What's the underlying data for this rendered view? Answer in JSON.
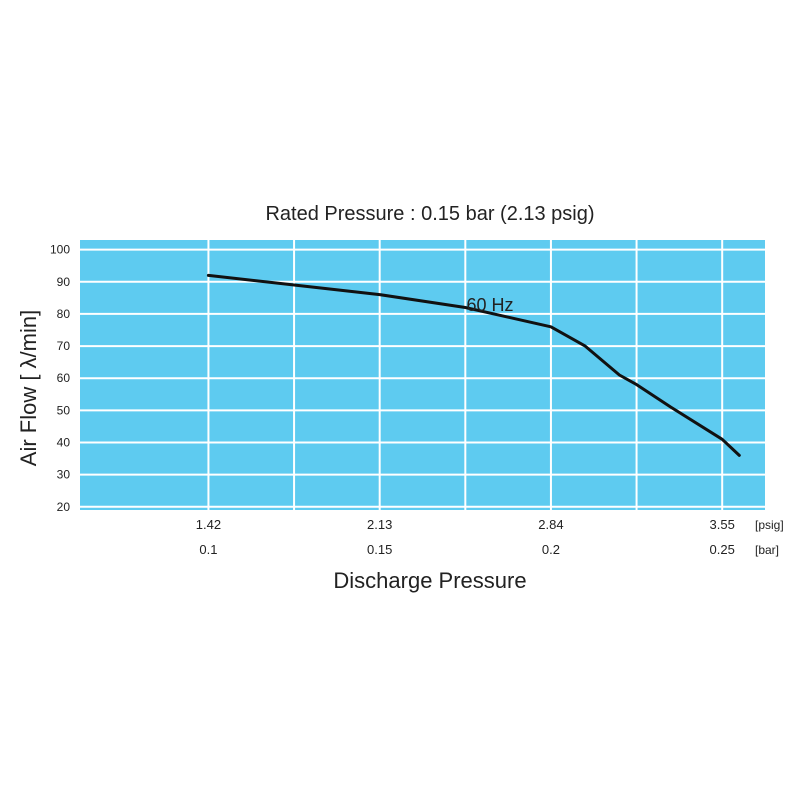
{
  "chart_data": {
    "type": "line",
    "title": "Rated Pressure : 0.15 bar (2.13 psig)",
    "xlabel": "Discharge Pressure",
    "ylabel": "Air Flow [ λ/min]",
    "xlim": [
      0.0625,
      0.2625
    ],
    "ylim": [
      19,
      103
    ],
    "y_ticks": [
      20,
      30,
      40,
      50,
      60,
      70,
      80,
      90,
      100
    ],
    "x_ticks_psig": [
      "1.42",
      "2.13",
      "2.84",
      "3.55"
    ],
    "x_ticks_bar": [
      "0.1",
      "0.15",
      "0.2",
      "0.25"
    ],
    "x_tick_values": [
      0.1,
      0.15,
      0.2,
      0.25
    ],
    "unit_psig": "[psig]",
    "unit_bar": "[bar]",
    "grid": true,
    "background_color": "#5ecbf0",
    "line_color": "#111111",
    "series": [
      {
        "name": "60 Hz",
        "x": [
          0.1,
          0.125,
          0.15,
          0.175,
          0.2,
          0.21,
          0.22,
          0.225,
          0.235,
          0.25,
          0.255
        ],
        "y": [
          92,
          89,
          86,
          82,
          76,
          70,
          61,
          58,
          51,
          41,
          36
        ]
      }
    ]
  }
}
